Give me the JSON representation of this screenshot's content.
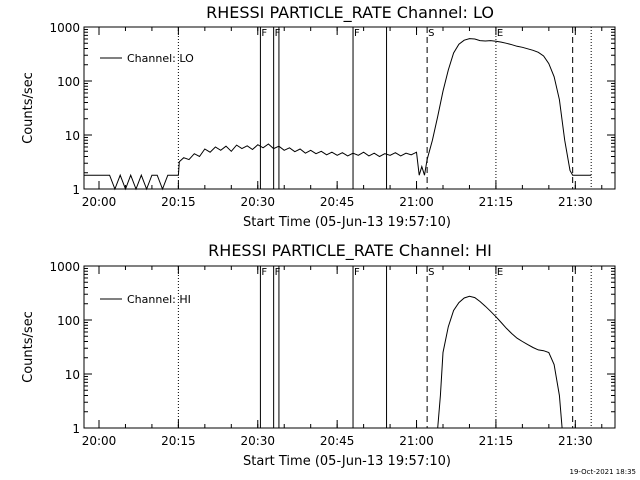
{
  "footer": {
    "date_stamp": "19-Oct-2021 18:35"
  },
  "chart_data": [
    {
      "type": "line",
      "title": "RHESSI PARTICLE_RATE Channel: LO",
      "xlabel": "Start Time (05-Jun-13 19:57:10)",
      "ylabel": "Counts/sec",
      "x_ticks": [
        "20:00",
        "20:15",
        "20:30",
        "20:45",
        "21:00",
        "21:15",
        "21:30"
      ],
      "y_ticks": [
        "1",
        "10",
        "100",
        "1000"
      ],
      "y_scale": "log",
      "xlim": [
        "19:57:10",
        "21:37:30"
      ],
      "ylim": [
        1,
        1000
      ],
      "legend": {
        "placement": "top-left",
        "entries": [
          "Channel: LO"
        ]
      },
      "markers": [
        {
          "label": "F",
          "time": "20:30:30",
          "style": "solid"
        },
        {
          "label": "F",
          "time": "20:33:00",
          "style": "solid"
        },
        {
          "label": "",
          "time": "20:34:00",
          "style": "solid"
        },
        {
          "label": "F",
          "time": "20:48:00",
          "style": "solid"
        },
        {
          "label": "",
          "time": "20:54:20",
          "style": "solid"
        },
        {
          "label": "S",
          "time": "21:02:00",
          "style": "dashed"
        },
        {
          "label": "E",
          "time": "21:15:00",
          "style": "dotted"
        },
        {
          "label": "",
          "time": "21:29:30",
          "style": "dashed"
        },
        {
          "label": "",
          "time": "21:33:00",
          "style": "dotted"
        },
        {
          "label": "",
          "time": "20:15:00",
          "style": "dotted"
        }
      ],
      "series": [
        {
          "name": "Channel: LO",
          "points": [
            [
              "19:57:10",
              1.8
            ],
            [
              "20:00:00",
              1.8
            ],
            [
              "20:02:00",
              1.8
            ],
            [
              "20:03:00",
              1.0
            ],
            [
              "20:04:00",
              1.8
            ],
            [
              "20:05:00",
              1.0
            ],
            [
              "20:06:00",
              1.8
            ],
            [
              "20:07:00",
              1.0
            ],
            [
              "20:08:00",
              1.8
            ],
            [
              "20:09:00",
              1.0
            ],
            [
              "20:10:00",
              1.8
            ],
            [
              "20:11:00",
              1.8
            ],
            [
              "20:12:00",
              1.0
            ],
            [
              "20:13:00",
              1.8
            ],
            [
              "20:15:00",
              1.8
            ],
            [
              "20:15:10",
              3.2
            ],
            [
              "20:16:00",
              3.8
            ],
            [
              "20:17:00",
              3.5
            ],
            [
              "20:18:00",
              4.5
            ],
            [
              "20:19:00",
              4.0
            ],
            [
              "20:20:00",
              5.5
            ],
            [
              "20:21:00",
              4.8
            ],
            [
              "20:22:00",
              6.0
            ],
            [
              "20:23:00",
              5.2
            ],
            [
              "20:24:00",
              6.2
            ],
            [
              "20:25:00",
              5.0
            ],
            [
              "20:26:00",
              6.5
            ],
            [
              "20:27:00",
              5.6
            ],
            [
              "20:28:00",
              6.3
            ],
            [
              "20:29:00",
              5.4
            ],
            [
              "20:30:00",
              6.6
            ],
            [
              "20:31:00",
              5.8
            ],
            [
              "20:32:00",
              6.8
            ],
            [
              "20:33:00",
              5.6
            ],
            [
              "20:34:00",
              6.2
            ],
            [
              "20:35:00",
              5.2
            ],
            [
              "20:36:00",
              5.8
            ],
            [
              "20:37:00",
              4.9
            ],
            [
              "20:38:00",
              5.5
            ],
            [
              "20:39:00",
              4.6
            ],
            [
              "20:40:00",
              5.2
            ],
            [
              "20:41:00",
              4.5
            ],
            [
              "20:42:00",
              5.0
            ],
            [
              "20:43:00",
              4.3
            ],
            [
              "20:44:00",
              4.8
            ],
            [
              "20:45:00",
              4.2
            ],
            [
              "20:46:00",
              4.7
            ],
            [
              "20:47:00",
              4.1
            ],
            [
              "20:48:00",
              4.6
            ],
            [
              "20:49:00",
              4.2
            ],
            [
              "20:50:00",
              4.8
            ],
            [
              "20:51:00",
              4.1
            ],
            [
              "20:52:00",
              4.6
            ],
            [
              "20:53:00",
              4.0
            ],
            [
              "20:54:00",
              4.5
            ],
            [
              "20:55:00",
              4.2
            ],
            [
              "20:56:00",
              4.7
            ],
            [
              "20:57:00",
              4.1
            ],
            [
              "20:58:00",
              4.6
            ],
            [
              "20:59:00",
              4.3
            ],
            [
              "21:00:00",
              4.8
            ],
            [
              "21:00:30",
              1.8
            ],
            [
              "21:01:00",
              2.6
            ],
            [
              "21:01:30",
              1.8
            ],
            [
              "21:02:00",
              3.5
            ],
            [
              "21:03:00",
              8.0
            ],
            [
              "21:04:00",
              22
            ],
            [
              "21:05:00",
              65
            ],
            [
              "21:06:00",
              160
            ],
            [
              "21:07:00",
              330
            ],
            [
              "21:08:00",
              480
            ],
            [
              "21:09:00",
              570
            ],
            [
              "21:10:00",
              610
            ],
            [
              "21:11:00",
              600
            ],
            [
              "21:12:00",
              560
            ],
            [
              "21:13:00",
              550
            ],
            [
              "21:14:00",
              560
            ],
            [
              "21:15:00",
              545
            ],
            [
              "21:16:00",
              525
            ],
            [
              "21:17:00",
              500
            ],
            [
              "21:18:00",
              470
            ],
            [
              "21:19:00",
              440
            ],
            [
              "21:20:00",
              420
            ],
            [
              "21:21:00",
              395
            ],
            [
              "21:22:00",
              370
            ],
            [
              "21:23:00",
              340
            ],
            [
              "21:24:00",
              290
            ],
            [
              "21:25:00",
              210
            ],
            [
              "21:26:00",
              120
            ],
            [
              "21:27:00",
              45
            ],
            [
              "21:28:00",
              8.0
            ],
            [
              "21:29:00",
              2.2
            ],
            [
              "21:29:30",
              1.8
            ],
            [
              "21:33:00",
              1.8
            ]
          ]
        }
      ]
    },
    {
      "type": "line",
      "title": "RHESSI PARTICLE_RATE Channel: HI",
      "xlabel": "Start Time (05-Jun-13 19:57:10)",
      "ylabel": "Counts/sec",
      "x_ticks": [
        "20:00",
        "20:15",
        "20:30",
        "20:45",
        "21:00",
        "21:15",
        "21:30"
      ],
      "y_ticks": [
        "1",
        "10",
        "100",
        "1000"
      ],
      "y_scale": "log",
      "xlim": [
        "19:57:10",
        "21:37:30"
      ],
      "ylim": [
        1,
        1000
      ],
      "legend": {
        "placement": "top-left",
        "entries": [
          "Channel: HI"
        ]
      },
      "markers": [
        {
          "label": "F",
          "time": "20:30:30",
          "style": "solid"
        },
        {
          "label": "F",
          "time": "20:33:00",
          "style": "solid"
        },
        {
          "label": "",
          "time": "20:34:00",
          "style": "solid"
        },
        {
          "label": "F",
          "time": "20:48:00",
          "style": "solid"
        },
        {
          "label": "",
          "time": "20:54:20",
          "style": "solid"
        },
        {
          "label": "S",
          "time": "21:02:00",
          "style": "dashed"
        },
        {
          "label": "E",
          "time": "21:15:00",
          "style": "dotted"
        },
        {
          "label": "",
          "time": "21:29:30",
          "style": "dashed"
        },
        {
          "label": "",
          "time": "21:33:00",
          "style": "dotted"
        },
        {
          "label": "",
          "time": "20:15:00",
          "style": "dotted"
        }
      ],
      "series": [
        {
          "name": "Channel: HI",
          "points": [
            [
              "21:04:00",
              1.0
            ],
            [
              "21:04:30",
              4.0
            ],
            [
              "21:05:00",
              25
            ],
            [
              "21:06:00",
              75
            ],
            [
              "21:07:00",
              150
            ],
            [
              "21:08:00",
              210
            ],
            [
              "21:09:00",
              255
            ],
            [
              "21:10:00",
              275
            ],
            [
              "21:11:00",
              260
            ],
            [
              "21:12:00",
              220
            ],
            [
              "21:13:00",
              180
            ],
            [
              "21:14:00",
              145
            ],
            [
              "21:15:00",
              115
            ],
            [
              "21:16:00",
              90
            ],
            [
              "21:17:00",
              70
            ],
            [
              "21:18:00",
              56
            ],
            [
              "21:19:00",
              46
            ],
            [
              "21:20:00",
              40
            ],
            [
              "21:21:00",
              35
            ],
            [
              "21:22:00",
              31
            ],
            [
              "21:23:00",
              28
            ],
            [
              "21:24:00",
              27
            ],
            [
              "21:25:00",
              25
            ],
            [
              "21:26:00",
              15
            ],
            [
              "21:27:00",
              4.0
            ],
            [
              "21:27:30",
              1.0
            ]
          ]
        }
      ]
    }
  ]
}
